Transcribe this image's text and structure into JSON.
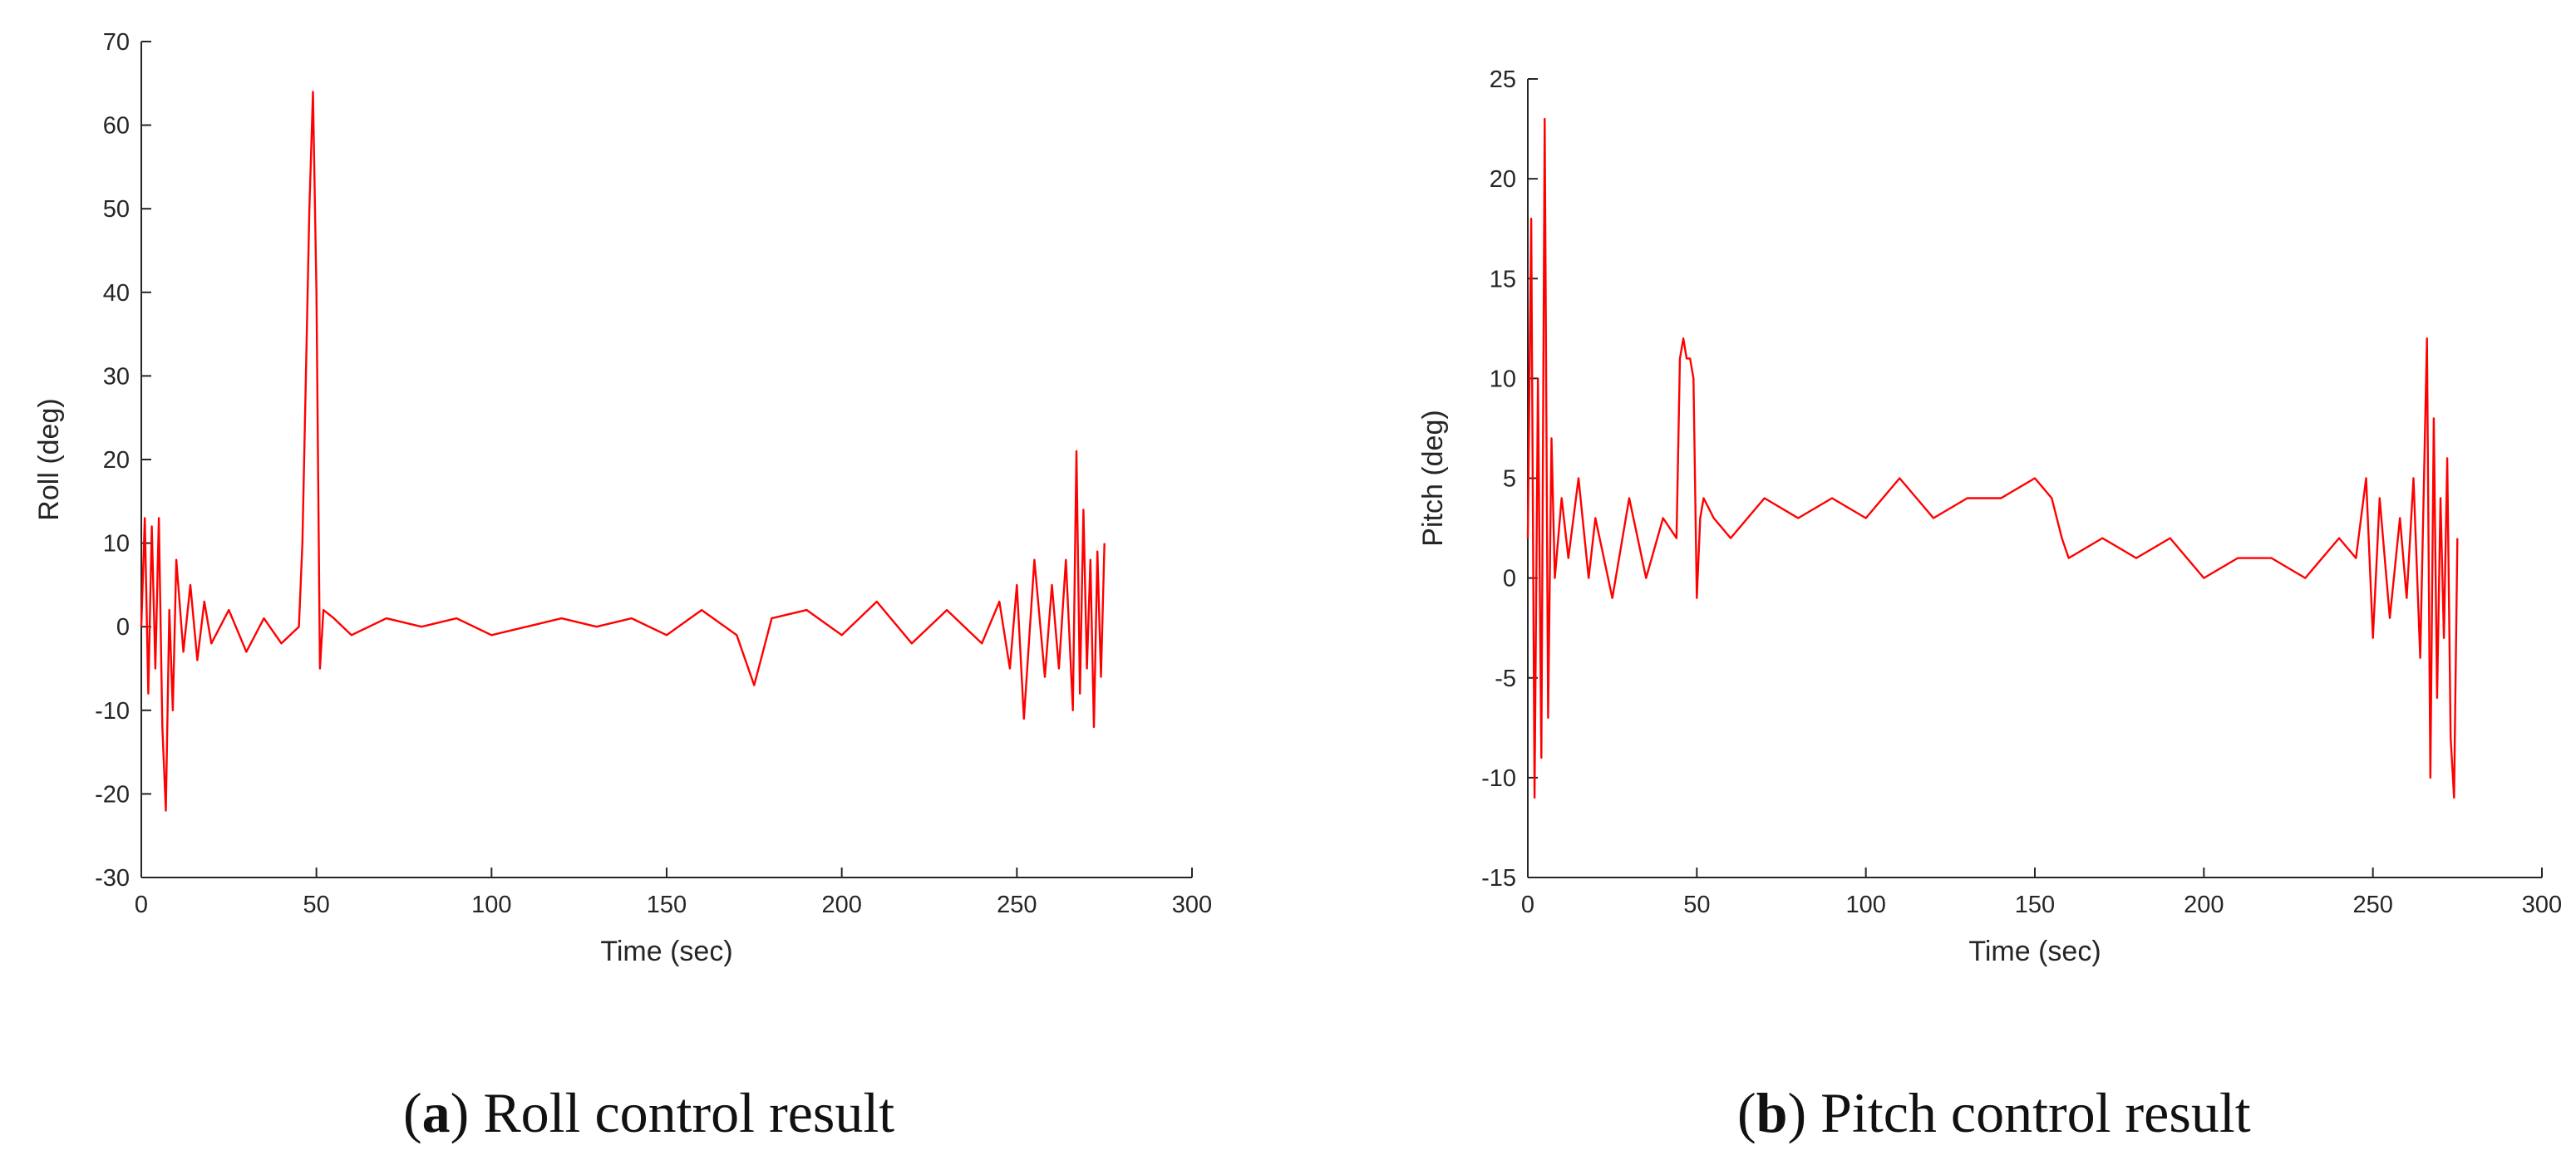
{
  "chart_data": [
    {
      "type": "line",
      "xlabel": "Time (sec)",
      "ylabel": "Roll (deg)",
      "xlim": [
        0,
        300
      ],
      "ylim": [
        -30,
        70
      ],
      "xticks": [
        0,
        50,
        100,
        150,
        200,
        250,
        300
      ],
      "yticks": [
        -30,
        -20,
        -10,
        0,
        10,
        20,
        30,
        40,
        50,
        60,
        70
      ],
      "grid": false,
      "caption": {
        "letter": "a",
        "text": "Roll control result"
      },
      "series": [
        {
          "color": "#ff0000",
          "x": [
            0,
            1,
            2,
            3,
            4,
            5,
            6,
            7,
            8,
            9,
            10,
            12,
            14,
            16,
            18,
            20,
            25,
            30,
            35,
            40,
            45,
            46,
            47,
            48,
            49,
            50,
            51,
            52,
            55,
            60,
            70,
            80,
            90,
            100,
            110,
            120,
            130,
            140,
            150,
            160,
            170,
            175,
            180,
            190,
            200,
            210,
            220,
            230,
            240,
            245,
            248,
            250,
            252,
            255,
            258,
            260,
            262,
            264,
            266,
            267,
            268,
            269,
            270,
            271,
            272,
            273,
            274,
            275
          ],
          "y": [
            0,
            13,
            -8,
            12,
            -5,
            13,
            -12,
            -22,
            2,
            -10,
            8,
            -3,
            5,
            -4,
            3,
            -2,
            2,
            -3,
            1,
            -2,
            0,
            10,
            30,
            50,
            64,
            40,
            -5,
            2,
            1,
            -1,
            1,
            0,
            1,
            -1,
            0,
            1,
            0,
            1,
            -1,
            2,
            -1,
            -7,
            1,
            2,
            -1,
            3,
            -2,
            2,
            -2,
            3,
            -5,
            5,
            -11,
            8,
            -6,
            5,
            -5,
            8,
            -10,
            21,
            -8,
            14,
            -5,
            8,
            -12,
            9,
            -6,
            10
          ]
        }
      ]
    },
    {
      "type": "line",
      "xlabel": "Time (sec)",
      "ylabel": "Pitch (deg)",
      "xlim": [
        0,
        300
      ],
      "ylim": [
        -15,
        25
      ],
      "xticks": [
        0,
        50,
        100,
        150,
        200,
        250,
        300
      ],
      "yticks": [
        -15,
        -10,
        -5,
        0,
        5,
        10,
        15,
        20,
        25
      ],
      "grid": false,
      "caption": {
        "letter": "b",
        "text": "Pitch control result"
      },
      "series": [
        {
          "color": "#ff0000",
          "x": [
            0,
            1,
            2,
            3,
            4,
            5,
            6,
            7,
            8,
            10,
            12,
            15,
            18,
            20,
            25,
            30,
            35,
            40,
            44,
            45,
            46,
            47,
            48,
            49,
            50,
            51,
            52,
            55,
            60,
            70,
            80,
            90,
            100,
            110,
            120,
            130,
            140,
            150,
            155,
            158,
            160,
            170,
            180,
            190,
            200,
            210,
            220,
            230,
            240,
            245,
            248,
            250,
            252,
            255,
            258,
            260,
            262,
            264,
            266,
            267,
            268,
            269,
            270,
            271,
            272,
            273,
            274,
            275
          ],
          "y": [
            2,
            18,
            -11,
            10,
            -9,
            23,
            -7,
            7,
            0,
            4,
            1,
            5,
            0,
            3,
            -1,
            4,
            0,
            3,
            2,
            11,
            12,
            11,
            11,
            10,
            -1,
            3,
            4,
            3,
            2,
            4,
            3,
            4,
            3,
            5,
            3,
            4,
            4,
            5,
            4,
            2,
            1,
            2,
            1,
            2,
            0,
            1,
            1,
            0,
            2,
            1,
            5,
            -3,
            4,
            -2,
            3,
            -1,
            5,
            -4,
            12,
            -10,
            8,
            -6,
            4,
            -3,
            6,
            -8,
            -11,
            2
          ]
        }
      ]
    }
  ]
}
